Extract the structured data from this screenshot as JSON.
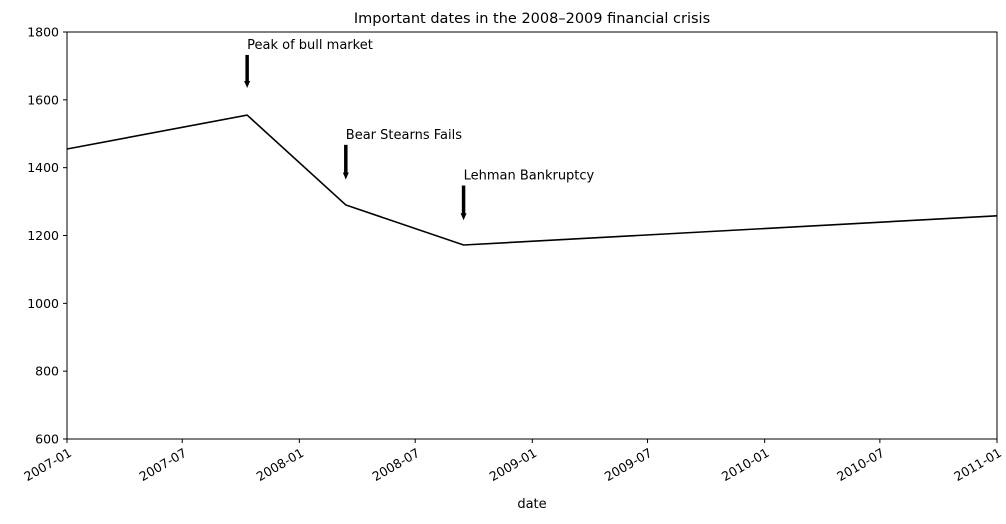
{
  "chart_data": {
    "type": "line",
    "title": "Important dates in the 2008–2009 financial crisis",
    "xlabel": "date",
    "ylabel": "",
    "xlim": [
      "2007-01-01",
      "2011-01-01"
    ],
    "ylim": [
      600,
      1800
    ],
    "x_ticks": [
      "2007-01",
      "2007-07",
      "2008-01",
      "2008-07",
      "2009-01",
      "2009-07",
      "2010-01",
      "2010-07",
      "2011-01"
    ],
    "y_ticks": [
      600,
      800,
      1000,
      1200,
      1400,
      1600,
      1800
    ],
    "grid": false,
    "line_color": "#000000",
    "series": [
      {
        "x": [
          "2007-01-01",
          "2007-10-11",
          "2008-03-14",
          "2008-09-15",
          "2011-01-01"
        ],
        "y": [
          1455,
          1555,
          1290,
          1172,
          1258
        ]
      }
    ],
    "annotations": [
      {
        "label": "Peak of bull market",
        "date": "2007-10-11",
        "arrow_tip": 1635,
        "text_y": 1750
      },
      {
        "label": "Bear Stearns Fails",
        "date": "2008-03-14",
        "arrow_tip": 1365,
        "text_y": 1485
      },
      {
        "label": "Lehman Bankruptcy",
        "date": "2008-09-15",
        "arrow_tip": 1245,
        "text_y": 1365
      }
    ]
  }
}
